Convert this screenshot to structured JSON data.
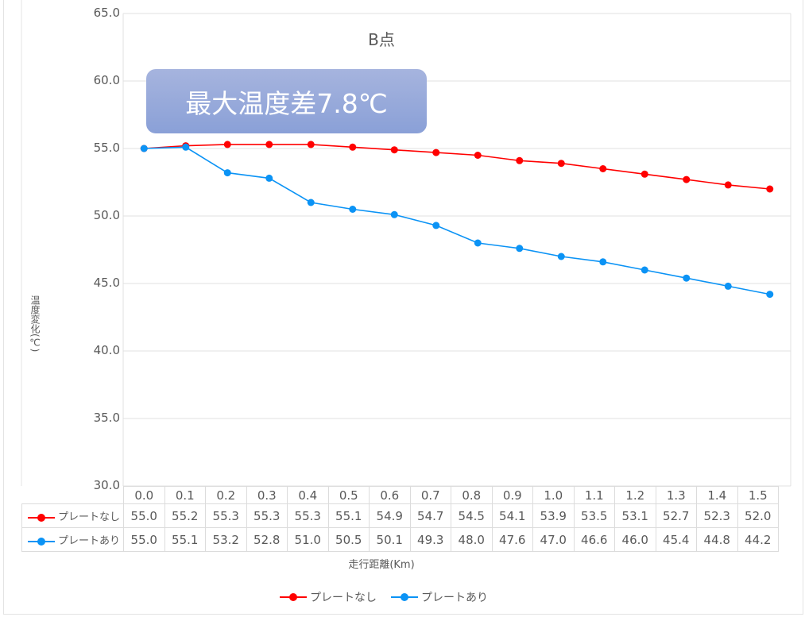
{
  "chart_data": {
    "type": "line",
    "title": "B点",
    "annotation": "最大温度差7.8℃",
    "xlabel": "走行距離(Km)",
    "ylabel": "温度変化(℃)",
    "ylim": [
      30.0,
      65.0
    ],
    "yticks": [
      "65.0",
      "60.0",
      "55.0",
      "50.0",
      "45.0",
      "40.0",
      "35.0",
      "30.0"
    ],
    "grid": true,
    "legend_position": "bottom",
    "categories": [
      "0.0",
      "0.1",
      "0.2",
      "0.3",
      "0.4",
      "0.5",
      "0.6",
      "0.7",
      "0.8",
      "0.9",
      "1.0",
      "1.1",
      "1.2",
      "1.3",
      "1.4",
      "1.5"
    ],
    "series": [
      {
        "name": "プレートなし",
        "color": "#ff0000",
        "values": [
          55.0,
          55.2,
          55.3,
          55.3,
          55.3,
          55.1,
          54.9,
          54.7,
          54.5,
          54.1,
          53.9,
          53.5,
          53.1,
          52.7,
          52.3,
          52.0
        ]
      },
      {
        "name": "プレートあり",
        "color": "#0b93f5",
        "values": [
          55.0,
          55.1,
          53.2,
          52.8,
          51.0,
          50.5,
          50.1,
          49.3,
          48.0,
          47.6,
          47.0,
          46.6,
          46.0,
          45.4,
          44.8,
          44.2
        ]
      }
    ]
  },
  "legend": {
    "items": [
      {
        "label": "プレートなし",
        "color": "#ff0000"
      },
      {
        "label": "プレートあり",
        "color": "#0b93f5"
      }
    ]
  }
}
